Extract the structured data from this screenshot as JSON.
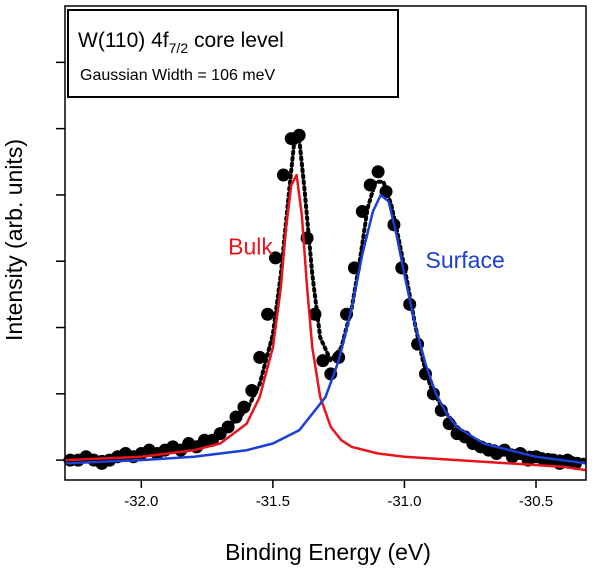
{
  "chart_data": {
    "type": "scatter",
    "title": "",
    "xlabel": "Binding Energy (eV)",
    "ylabel": "Intensity (arb. units)",
    "xlim": [
      -32.29,
      -30.31
    ],
    "ylim": [
      -0.3,
      6.85
    ],
    "x_reversed": false,
    "grid": false,
    "x_ticks": [
      -32.0,
      -31.5,
      -31.0,
      -30.5
    ],
    "x_tick_labels": [
      "-32.0",
      "-31.5",
      "-31.0",
      "-30.5"
    ],
    "y_ticks": [
      0,
      1,
      2,
      3,
      4,
      5,
      6
    ],
    "y_tick_labels_shown": false,
    "legend_box": {
      "title_main": "W(110) 4f",
      "title_sub": "7/2",
      "title_rest": " core level",
      "subtitle": "Gaussian Width = 106 meV",
      "placement": "top-left"
    },
    "annotations": [
      {
        "text": "Bulk",
        "color": "#e8141b",
        "x": -31.67,
        "y": 3.1
      },
      {
        "text": "Surface",
        "color": "#1a3fd6",
        "x": -30.92,
        "y": 2.9
      }
    ],
    "series": [
      {
        "kind": "points",
        "color": "#000000",
        "x": [
          -32.27,
          -32.24,
          -32.21,
          -32.18,
          -32.15,
          -32.12,
          -32.09,
          -32.06,
          -32.03,
          -32.0,
          -31.97,
          -31.94,
          -31.91,
          -31.88,
          -31.85,
          -31.82,
          -31.79,
          -31.76,
          -31.73,
          -31.7,
          -31.67,
          -31.64,
          -31.61,
          -31.58,
          -31.55,
          -31.52,
          -31.49,
          -31.46,
          -31.43,
          -31.4,
          -31.37,
          -31.34,
          -31.31,
          -31.28,
          -31.25,
          -31.22,
          -31.19,
          -31.16,
          -31.13,
          -31.1,
          -31.07,
          -31.04,
          -31.01,
          -30.98,
          -30.95,
          -30.92,
          -30.89,
          -30.86,
          -30.83,
          -30.8,
          -30.77,
          -30.74,
          -30.71,
          -30.68,
          -30.65,
          -30.62,
          -30.59,
          -30.56,
          -30.53,
          -30.5,
          -30.47,
          -30.44,
          -30.41,
          -30.38,
          -30.35
        ],
        "y": [
          0.0,
          0.0,
          0.05,
          0.0,
          -0.05,
          0.0,
          0.05,
          0.1,
          0.05,
          0.1,
          0.15,
          0.1,
          0.15,
          0.2,
          0.15,
          0.25,
          0.2,
          0.3,
          0.3,
          0.4,
          0.5,
          0.65,
          0.8,
          1.05,
          1.55,
          2.2,
          3.05,
          4.3,
          4.85,
          4.9,
          3.35,
          2.2,
          1.5,
          1.3,
          1.55,
          2.2,
          2.9,
          3.75,
          4.15,
          4.35,
          4.05,
          3.55,
          2.9,
          2.35,
          1.75,
          1.3,
          1.0,
          0.75,
          0.55,
          0.4,
          0.35,
          0.25,
          0.2,
          0.15,
          0.1,
          0.15,
          0.05,
          0.1,
          0.0,
          0.05,
          0.0,
          0.0,
          -0.05,
          0.0,
          -0.05
        ]
      },
      {
        "kind": "fit-dotted",
        "color": "#000000",
        "x": [
          -32.29,
          -32.0,
          -31.8,
          -31.7,
          -31.6,
          -31.55,
          -31.5,
          -31.47,
          -31.44,
          -31.42,
          -31.4,
          -31.38,
          -31.35,
          -31.32,
          -31.28,
          -31.24,
          -31.2,
          -31.17,
          -31.14,
          -31.11,
          -31.08,
          -31.05,
          -31.02,
          -30.99,
          -30.96,
          -30.93,
          -30.9,
          -30.85,
          -30.8,
          -30.75,
          -30.7,
          -30.6,
          -30.5,
          -30.4,
          -30.31
        ],
        "y": [
          0.0,
          0.1,
          0.25,
          0.4,
          0.75,
          1.15,
          1.9,
          2.8,
          4.0,
          4.75,
          4.85,
          4.1,
          2.8,
          1.85,
          1.5,
          1.7,
          2.3,
          3.0,
          3.8,
          4.2,
          4.2,
          3.85,
          3.3,
          2.7,
          2.05,
          1.5,
          1.1,
          0.75,
          0.5,
          0.35,
          0.25,
          0.15,
          0.1,
          0.05,
          0.0
        ]
      },
      {
        "kind": "line",
        "name": "Bulk",
        "color": "#e8141b",
        "x": [
          -32.29,
          -32.0,
          -31.8,
          -31.7,
          -31.6,
          -31.55,
          -31.5,
          -31.47,
          -31.45,
          -31.43,
          -31.41,
          -31.39,
          -31.37,
          -31.35,
          -31.32,
          -31.28,
          -31.24,
          -31.2,
          -31.1,
          -31.0,
          -30.8,
          -30.6,
          -30.4,
          -30.31
        ],
        "y": [
          0.0,
          0.05,
          0.15,
          0.25,
          0.55,
          0.95,
          1.7,
          2.6,
          3.5,
          4.15,
          4.3,
          3.7,
          2.6,
          1.7,
          0.95,
          0.5,
          0.3,
          0.2,
          0.1,
          0.05,
          0.0,
          -0.05,
          -0.1,
          -0.15
        ]
      },
      {
        "kind": "line",
        "name": "Surface",
        "color": "#1a3fd6",
        "x": [
          -32.29,
          -32.0,
          -31.8,
          -31.6,
          -31.5,
          -31.4,
          -31.3,
          -31.25,
          -31.2,
          -31.16,
          -31.12,
          -31.09,
          -31.06,
          -31.03,
          -31.0,
          -30.96,
          -30.92,
          -30.88,
          -30.84,
          -30.8,
          -30.7,
          -30.6,
          -30.5,
          -30.4,
          -30.31
        ],
        "y": [
          -0.05,
          0.0,
          0.05,
          0.15,
          0.25,
          0.45,
          0.95,
          1.5,
          2.3,
          3.1,
          3.75,
          4.0,
          3.9,
          3.4,
          2.8,
          2.05,
          1.45,
          1.0,
          0.7,
          0.5,
          0.25,
          0.15,
          0.05,
          0.0,
          -0.05
        ]
      }
    ]
  }
}
